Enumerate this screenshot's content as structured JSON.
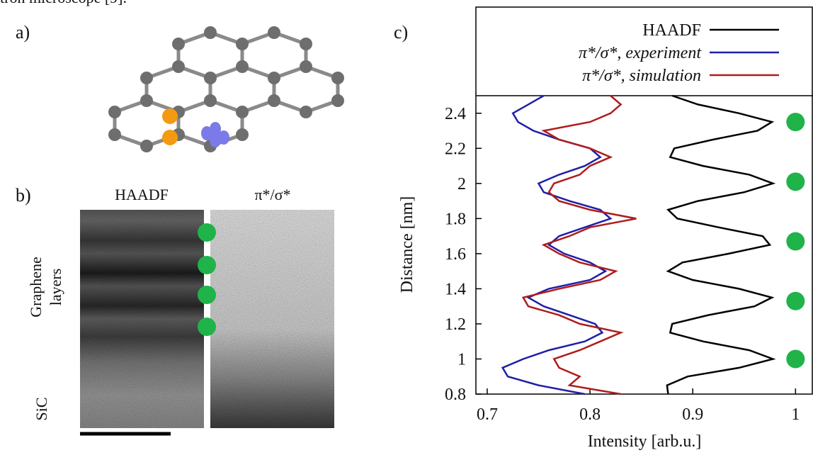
{
  "caption_fragment": "tron microscope [9].",
  "panels": {
    "a": {
      "label": "a)"
    },
    "b": {
      "label": "b)",
      "haadf_title": "HAADF",
      "ratio_title": "π*/σ*",
      "region_labels": [
        "Graphene",
        "layers",
        "SiC"
      ]
    },
    "c": {
      "label": "c)"
    }
  },
  "chart_data": {
    "type": "line",
    "xlabel": "Intensity [arb.u.]",
    "ylabel": "Distance [nm]",
    "distance": [
      0.8,
      0.85,
      0.9,
      0.95,
      1.0,
      1.05,
      1.1,
      1.15,
      1.2,
      1.25,
      1.3,
      1.35,
      1.4,
      1.45,
      1.5,
      1.55,
      1.6,
      1.65,
      1.7,
      1.75,
      1.8,
      1.85,
      1.9,
      1.95,
      2.0,
      2.05,
      2.1,
      2.15,
      2.2,
      2.25,
      2.3,
      2.35,
      2.4,
      2.45,
      2.5
    ],
    "series": [
      {
        "name": "HAADF",
        "color": "#000000",
        "values": [
          0.876,
          0.875,
          0.895,
          0.945,
          0.978,
          0.955,
          0.91,
          0.878,
          0.88,
          0.915,
          0.96,
          0.977,
          0.945,
          0.9,
          0.876,
          0.89,
          0.935,
          0.975,
          0.968,
          0.925,
          0.885,
          0.876,
          0.905,
          0.95,
          0.978,
          0.955,
          0.91,
          0.878,
          0.882,
          0.92,
          0.963,
          0.977,
          0.945,
          0.905,
          0.88
        ]
      },
      {
        "name": "π*/σ*, experiment",
        "color": "#1f1fa8",
        "values": [
          0.795,
          0.75,
          0.72,
          0.715,
          0.735,
          0.76,
          0.795,
          0.812,
          0.805,
          0.78,
          0.755,
          0.74,
          0.76,
          0.8,
          0.815,
          0.8,
          0.775,
          0.76,
          0.77,
          0.795,
          0.82,
          0.81,
          0.78,
          0.755,
          0.75,
          0.77,
          0.795,
          0.81,
          0.8,
          0.77,
          0.745,
          0.73,
          0.725,
          0.74,
          0.755
        ]
      },
      {
        "name": "π*/σ*, simulation",
        "color": "#b01c1c",
        "values": [
          0.83,
          0.78,
          0.79,
          0.77,
          0.765,
          0.79,
          0.81,
          0.83,
          0.79,
          0.77,
          0.74,
          0.735,
          0.77,
          0.81,
          0.825,
          0.79,
          0.77,
          0.755,
          0.78,
          0.8,
          0.845,
          0.8,
          0.77,
          0.76,
          0.765,
          0.79,
          0.8,
          0.82,
          0.8,
          0.77,
          0.755,
          0.8,
          0.82,
          0.83,
          0.82
        ]
      }
    ],
    "layer_markers": {
      "color": "#1fb34a",
      "x": 1,
      "distance": [
        1.0,
        1.33,
        1.67,
        2.01,
        2.35
      ]
    },
    "xlim": [
      0.689,
      1.017
    ],
    "ylim": [
      0.8,
      2.5
    ],
    "xticks": [
      0.7,
      0.8,
      0.9,
      1
    ],
    "yticks": [
      0.8,
      1,
      1.2,
      1.4,
      1.6,
      1.8,
      2,
      2.2,
      2.4
    ]
  }
}
